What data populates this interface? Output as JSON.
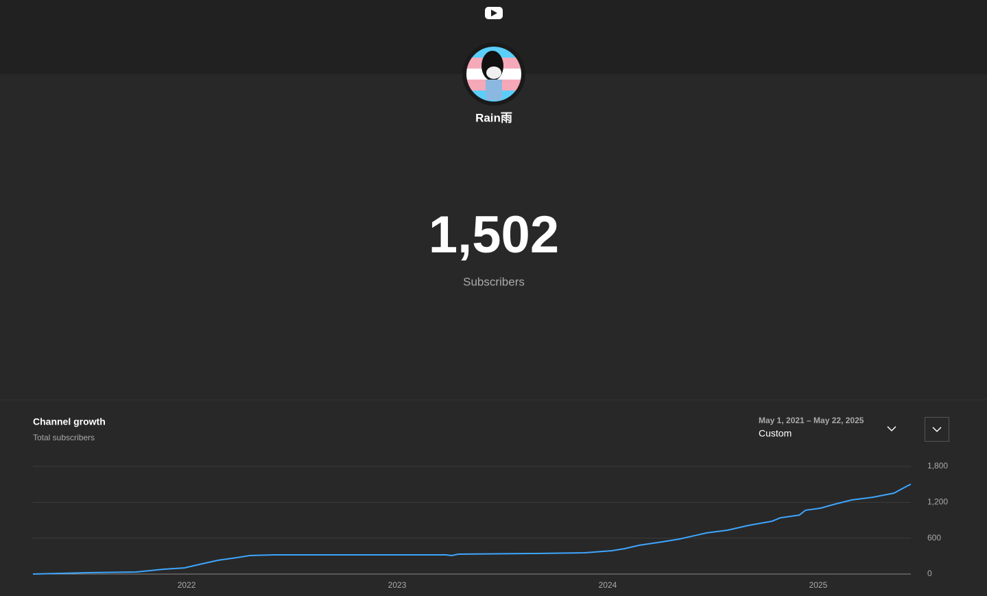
{
  "channel": {
    "name": "Rain雨",
    "subscriber_count": "1,502",
    "subscriber_label": "Subscribers"
  },
  "chart_data": {
    "type": "line",
    "title": "Channel growth",
    "subtitle": "Total subscribers",
    "date_range": "May 1, 2021 – May 22, 2025",
    "range_label": "Custom",
    "x": [
      2021.27,
      2021.53,
      2021.76,
      2021.89,
      2021.99,
      2022.06,
      2022.15,
      2022.24,
      2022.3,
      2022.42,
      2023.23,
      2023.26,
      2023.29,
      2023.66,
      2023.89,
      2024.02,
      2024.08,
      2024.15,
      2024.26,
      2024.34,
      2024.47,
      2024.57,
      2024.67,
      2024.78,
      2024.82,
      2024.91,
      2024.94,
      2025.01,
      2025.08,
      2025.16,
      2025.26,
      2025.36,
      2025.42,
      2025.44
    ],
    "series": [
      {
        "color": "#3ea6ff",
        "values": [
          0,
          23,
          34,
          80,
          103,
          160,
          230,
          275,
          310,
          321,
          321,
          310,
          333,
          344,
          355,
          390,
          424,
          482,
          539,
          585,
          688,
          734,
          814,
          883,
          940,
          986,
          1067,
          1101,
          1170,
          1239,
          1284,
          1353,
          1468,
          1502
        ]
      }
    ],
    "xlim": [
      2021.27,
      2025.44
    ],
    "xticks": [
      2022,
      2023,
      2024,
      2025
    ],
    "ylim": [
      0,
      1800
    ],
    "yticks": [
      0,
      600,
      {
        "value": 1200,
        "label": "1,200"
      },
      {
        "value": 1800,
        "label": "1,800"
      }
    ],
    "grid": true
  }
}
